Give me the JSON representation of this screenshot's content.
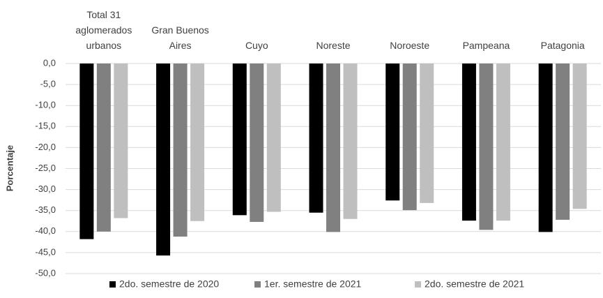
{
  "chart_data": {
    "type": "bar",
    "y_axis_label": "Porcentaje",
    "categories": [
      "Total 31 aglomerados urbanos",
      "Gran Buenos Aires",
      "Cuyo",
      "Noreste",
      "Noroeste",
      "Pampeana",
      "Patagonia"
    ],
    "series": [
      {
        "name": "2do. semestre de 2020",
        "color": "#000000",
        "values": [
          -41.8,
          -45.7,
          -36.1,
          -35.5,
          -32.6,
          -37.4,
          -40.1
        ]
      },
      {
        "name": "1er. semestre de 2021",
        "color": "#808080",
        "values": [
          -40.0,
          -41.2,
          -37.7,
          -40.1,
          -34.9,
          -39.6,
          -37.2
        ]
      },
      {
        "name": "2do. semestre de 2021",
        "color": "#bfbfbf",
        "values": [
          -36.8,
          -37.5,
          -35.3,
          -37.0,
          -33.2,
          -37.4,
          -34.6
        ]
      }
    ],
    "ylim": [
      -50,
      0
    ],
    "yticks": [
      {
        "value": 0,
        "label": "0,0"
      },
      {
        "value": -5,
        "label": "-5,0"
      },
      {
        "value": -10,
        "label": "-10,0"
      },
      {
        "value": -15,
        "label": "-15,0"
      },
      {
        "value": -20,
        "label": "-20,0"
      },
      {
        "value": -25,
        "label": "-25,0"
      },
      {
        "value": -30,
        "label": "-30,0"
      },
      {
        "value": -35,
        "label": "-35,0"
      },
      {
        "value": -40,
        "label": "-40,0"
      },
      {
        "value": -45,
        "label": "-45,0"
      },
      {
        "value": -50,
        "label": "-50,0"
      }
    ],
    "grid": true,
    "legend": "bottom"
  }
}
